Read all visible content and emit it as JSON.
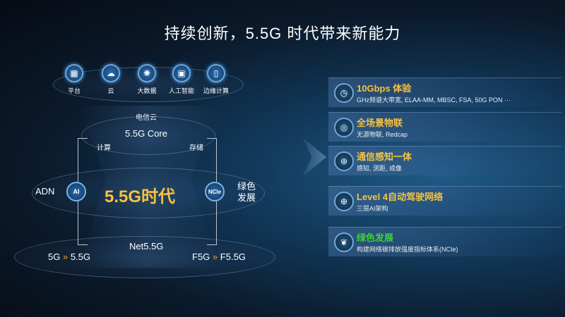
{
  "title": "持续创新，5.5G 时代带来新能力",
  "top_icons": [
    {
      "icon": "platform-icon",
      "label": "平台"
    },
    {
      "icon": "cloud-icon",
      "label": "云"
    },
    {
      "icon": "big-data-icon",
      "label": "大数据"
    },
    {
      "icon": "ai-chip-icon",
      "label": "人工智能"
    },
    {
      "icon": "edge-computing-icon",
      "label": "边缘计算"
    }
  ],
  "diagram": {
    "telecom_cloud": "电信云",
    "core": "5.5G Core",
    "compute": "计算",
    "storage": "存储",
    "center": "5.5G时代",
    "adn": "ADN",
    "ai": "AI",
    "ncle": "NCle",
    "green": "绿色发展",
    "net": "Net5.5G",
    "left_from": "5G",
    "left_to": "5.5G",
    "right_from": "F5G",
    "right_to": "F5.5G",
    "arrow": "»"
  },
  "features": [
    {
      "icon": "speed-icon",
      "title": "10Gbps 体验",
      "subtitle": "GHz频谱大带宽, ELAA-MM, MBSC, FSA, 50G PON ···"
    },
    {
      "icon": "iot-icon",
      "title": "全场景物联",
      "subtitle": "无源物联, Redcap"
    },
    {
      "icon": "sensing-icon",
      "title": "通信感知一体",
      "subtitle": "感知, 测距, 成像"
    },
    {
      "icon": "network-globe-icon",
      "title": "Level 4自动驾驶网络",
      "subtitle": "三层AI架构"
    },
    {
      "icon": "leaf-icon",
      "title": "绿色发展",
      "subtitle": "构建网络碳排放强度指标体系(NCIe)",
      "color": "#3bd13b"
    }
  ],
  "colors": {
    "accent": "#f5c242",
    "green": "#3bd13b"
  }
}
